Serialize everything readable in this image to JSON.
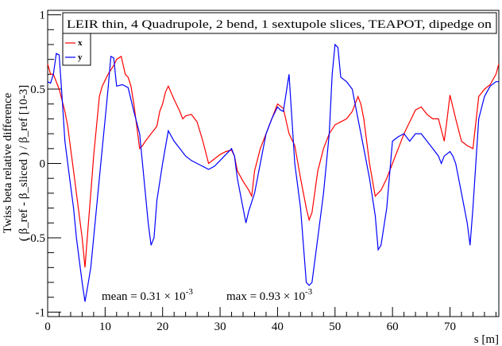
{
  "chart_data": {
    "type": "line",
    "title": "LEIR thin, 4 Quadrupole, 2 bend, 1 sextupole slices, TEAPOT, dipedge on",
    "xlabel": "s [m]",
    "ylabel": "( β_ref - β_sliced ) / β_ref    [10-3]",
    "ylabel_outer": "Twiss beta relative difference",
    "xlim": [
      0,
      78.5
    ],
    "ylim": [
      -1.03,
      1.03
    ],
    "x_ticks": [
      "0",
      "10",
      "20",
      "30",
      "40",
      "50",
      "60",
      "70"
    ],
    "y_ticks": [
      "-1",
      "-0.5",
      "0",
      "0.5",
      "1"
    ],
    "grid": false,
    "legend": "top-left",
    "annotations": {
      "mean": "mean = 0.31 × 10",
      "mean_exp": "-3",
      "max": "max = 0.93 × 10",
      "max_exp": "-3"
    },
    "series": [
      {
        "name": "x",
        "color": "#ff0000",
        "points": [
          [
            0,
            0.67
          ],
          [
            0.5,
            0.6
          ],
          [
            1,
            0.6
          ],
          [
            2,
            0.5
          ],
          [
            3,
            0.35
          ],
          [
            3.5,
            0.25
          ],
          [
            4,
            0.1
          ],
          [
            4.5,
            -0.05
          ],
          [
            5,
            -0.2
          ],
          [
            5.5,
            -0.35
          ],
          [
            6,
            -0.5
          ],
          [
            6.5,
            -0.7
          ],
          [
            7,
            -0.45
          ],
          [
            7.5,
            -0.2
          ],
          [
            8,
            0.05
          ],
          [
            8.5,
            0.25
          ],
          [
            9,
            0.45
          ],
          [
            9.5,
            0.52
          ],
          [
            10,
            0.56
          ],
          [
            10.5,
            0.6
          ],
          [
            11,
            0.63
          ],
          [
            11.5,
            0.66
          ],
          [
            12,
            0.7
          ],
          [
            12.8,
            0.72
          ],
          [
            13.5,
            0.6
          ],
          [
            14,
            0.58
          ],
          [
            14.5,
            0.52
          ],
          [
            15,
            0.4
          ],
          [
            15.5,
            0.25
          ],
          [
            16,
            0.1
          ],
          [
            16.5,
            0.12
          ],
          [
            17,
            0.15
          ],
          [
            18,
            0.2
          ],
          [
            19,
            0.25
          ],
          [
            19.5,
            0.35
          ],
          [
            20,
            0.4
          ],
          [
            20.5,
            0.48
          ],
          [
            21,
            0.52
          ],
          [
            22,
            0.43
          ],
          [
            23,
            0.35
          ],
          [
            23.5,
            0.3
          ],
          [
            24,
            0.32
          ],
          [
            25,
            0.33
          ],
          [
            26,
            0.28
          ],
          [
            27,
            0.15
          ],
          [
            28,
            0.0
          ],
          [
            29,
            0.03
          ],
          [
            30,
            0.06
          ],
          [
            31,
            0.08
          ],
          [
            32,
            0.09
          ],
          [
            32.5,
            0.05
          ],
          [
            33,
            -0.05
          ],
          [
            34,
            -0.12
          ],
          [
            35,
            -0.18
          ],
          [
            35.5,
            -0.22
          ],
          [
            36,
            -0.05
          ],
          [
            37,
            0.1
          ],
          [
            38,
            0.2
          ],
          [
            39,
            0.3
          ],
          [
            40,
            0.4
          ],
          [
            41,
            0.37
          ],
          [
            42,
            0.2
          ],
          [
            43,
            0.12
          ],
          [
            44,
            -0.1
          ],
          [
            45,
            -0.3
          ],
          [
            45.5,
            -0.38
          ],
          [
            46,
            -0.33
          ],
          [
            47,
            -0.05
          ],
          [
            48,
            0.1
          ],
          [
            49,
            0.2
          ],
          [
            50,
            0.26
          ],
          [
            51,
            0.28
          ],
          [
            52,
            0.3
          ],
          [
            53,
            0.35
          ],
          [
            54,
            0.45
          ],
          [
            54.5,
            0.4
          ],
          [
            55,
            0.3
          ],
          [
            56,
            0.0
          ],
          [
            57,
            -0.22
          ],
          [
            58,
            -0.18
          ],
          [
            59,
            -0.1
          ],
          [
            60,
            0.0
          ],
          [
            61,
            0.1
          ],
          [
            62,
            0.2
          ],
          [
            63,
            0.28
          ],
          [
            64,
            0.36
          ],
          [
            65,
            0.38
          ],
          [
            66,
            0.33
          ],
          [
            67,
            0.3
          ],
          [
            68,
            0.3
          ],
          [
            69,
            0.15
          ],
          [
            69.5,
            0.3
          ],
          [
            70,
            0.46
          ],
          [
            70.5,
            0.38
          ],
          [
            71,
            0.3
          ],
          [
            72,
            0.15
          ],
          [
            73,
            0.12
          ],
          [
            74,
            0.1
          ],
          [
            75,
            0.45
          ],
          [
            76,
            0.5
          ],
          [
            77,
            0.53
          ],
          [
            78,
            0.6
          ],
          [
            78.5,
            0.67
          ]
        ]
      },
      {
        "name": "y",
        "color": "#0000ff",
        "points": [
          [
            0,
            0.55
          ],
          [
            0.5,
            0.54
          ],
          [
            1,
            0.6
          ],
          [
            1.5,
            0.74
          ],
          [
            2,
            0.73
          ],
          [
            2.5,
            0.45
          ],
          [
            3,
            0.15
          ],
          [
            3.5,
            0.0
          ],
          [
            4,
            -0.15
          ],
          [
            4.5,
            -0.3
          ],
          [
            5,
            -0.5
          ],
          [
            5.5,
            -0.65
          ],
          [
            6,
            -0.8
          ],
          [
            6.5,
            -0.93
          ],
          [
            7,
            -0.82
          ],
          [
            7.5,
            -0.7
          ],
          [
            8,
            -0.5
          ],
          [
            8.5,
            -0.3
          ],
          [
            9,
            -0.1
          ],
          [
            9.5,
            0.1
          ],
          [
            10,
            0.3
          ],
          [
            10.5,
            0.5
          ],
          [
            11,
            0.72
          ],
          [
            11.5,
            0.71
          ],
          [
            12,
            0.52
          ],
          [
            13,
            0.53
          ],
          [
            14,
            0.51
          ],
          [
            15,
            0.35
          ],
          [
            16,
            0.2
          ],
          [
            16.5,
            0.0
          ],
          [
            17,
            -0.2
          ],
          [
            17.5,
            -0.4
          ],
          [
            18,
            -0.55
          ],
          [
            18.5,
            -0.5
          ],
          [
            19,
            -0.25
          ],
          [
            20,
            0.0
          ],
          [
            21,
            0.22
          ],
          [
            22,
            0.15
          ],
          [
            23,
            0.1
          ],
          [
            24,
            0.05
          ],
          [
            25,
            0.02
          ],
          [
            26,
            0.0
          ],
          [
            27,
            -0.02
          ],
          [
            28,
            -0.04
          ],
          [
            29,
            -0.02
          ],
          [
            30,
            0.02
          ],
          [
            31,
            0.06
          ],
          [
            32,
            0.1
          ],
          [
            32.5,
            0.05
          ],
          [
            33,
            -0.1
          ],
          [
            34,
            -0.3
          ],
          [
            34.5,
            -0.4
          ],
          [
            35,
            -0.32
          ],
          [
            36,
            -0.2
          ],
          [
            37,
            0.0
          ],
          [
            38,
            0.2
          ],
          [
            39,
            0.3
          ],
          [
            40,
            0.38
          ],
          [
            40.5,
            0.36
          ],
          [
            41,
            0.35
          ],
          [
            42,
            0.6
          ],
          [
            42.5,
            0.3
          ],
          [
            43,
            0.0
          ],
          [
            44,
            -0.3
          ],
          [
            44.5,
            -0.55
          ],
          [
            45,
            -0.8
          ],
          [
            45.5,
            -0.82
          ],
          [
            46,
            -0.8
          ],
          [
            47,
            -0.5
          ],
          [
            48,
            -0.2
          ],
          [
            49,
            0.2
          ],
          [
            49.5,
            0.6
          ],
          [
            50,
            0.8
          ],
          [
            50.5,
            0.78
          ],
          [
            51,
            0.58
          ],
          [
            52,
            0.55
          ],
          [
            53,
            0.5
          ],
          [
            54,
            0.3
          ],
          [
            55,
            0.1
          ],
          [
            56,
            -0.1
          ],
          [
            57,
            -0.35
          ],
          [
            57.5,
            -0.58
          ],
          [
            58,
            -0.55
          ],
          [
            59,
            -0.3
          ],
          [
            60,
            0.15
          ],
          [
            61,
            0.18
          ],
          [
            62,
            0.2
          ],
          [
            63,
            0.15
          ],
          [
            64,
            0.2
          ],
          [
            65,
            0.2
          ],
          [
            66,
            0.15
          ],
          [
            67,
            0.1
          ],
          [
            68,
            0.05
          ],
          [
            68.5,
            0.0
          ],
          [
            69,
            0.05
          ],
          [
            70,
            0.08
          ],
          [
            70.5,
            0.05
          ],
          [
            71,
            0.0
          ],
          [
            72,
            -0.2
          ],
          [
            73,
            -0.4
          ],
          [
            73.5,
            -0.55
          ],
          [
            74,
            -0.3
          ],
          [
            75,
            0.3
          ],
          [
            76,
            0.45
          ],
          [
            77,
            0.52
          ],
          [
            78,
            0.55
          ],
          [
            78.5,
            0.55
          ]
        ]
      }
    ]
  }
}
